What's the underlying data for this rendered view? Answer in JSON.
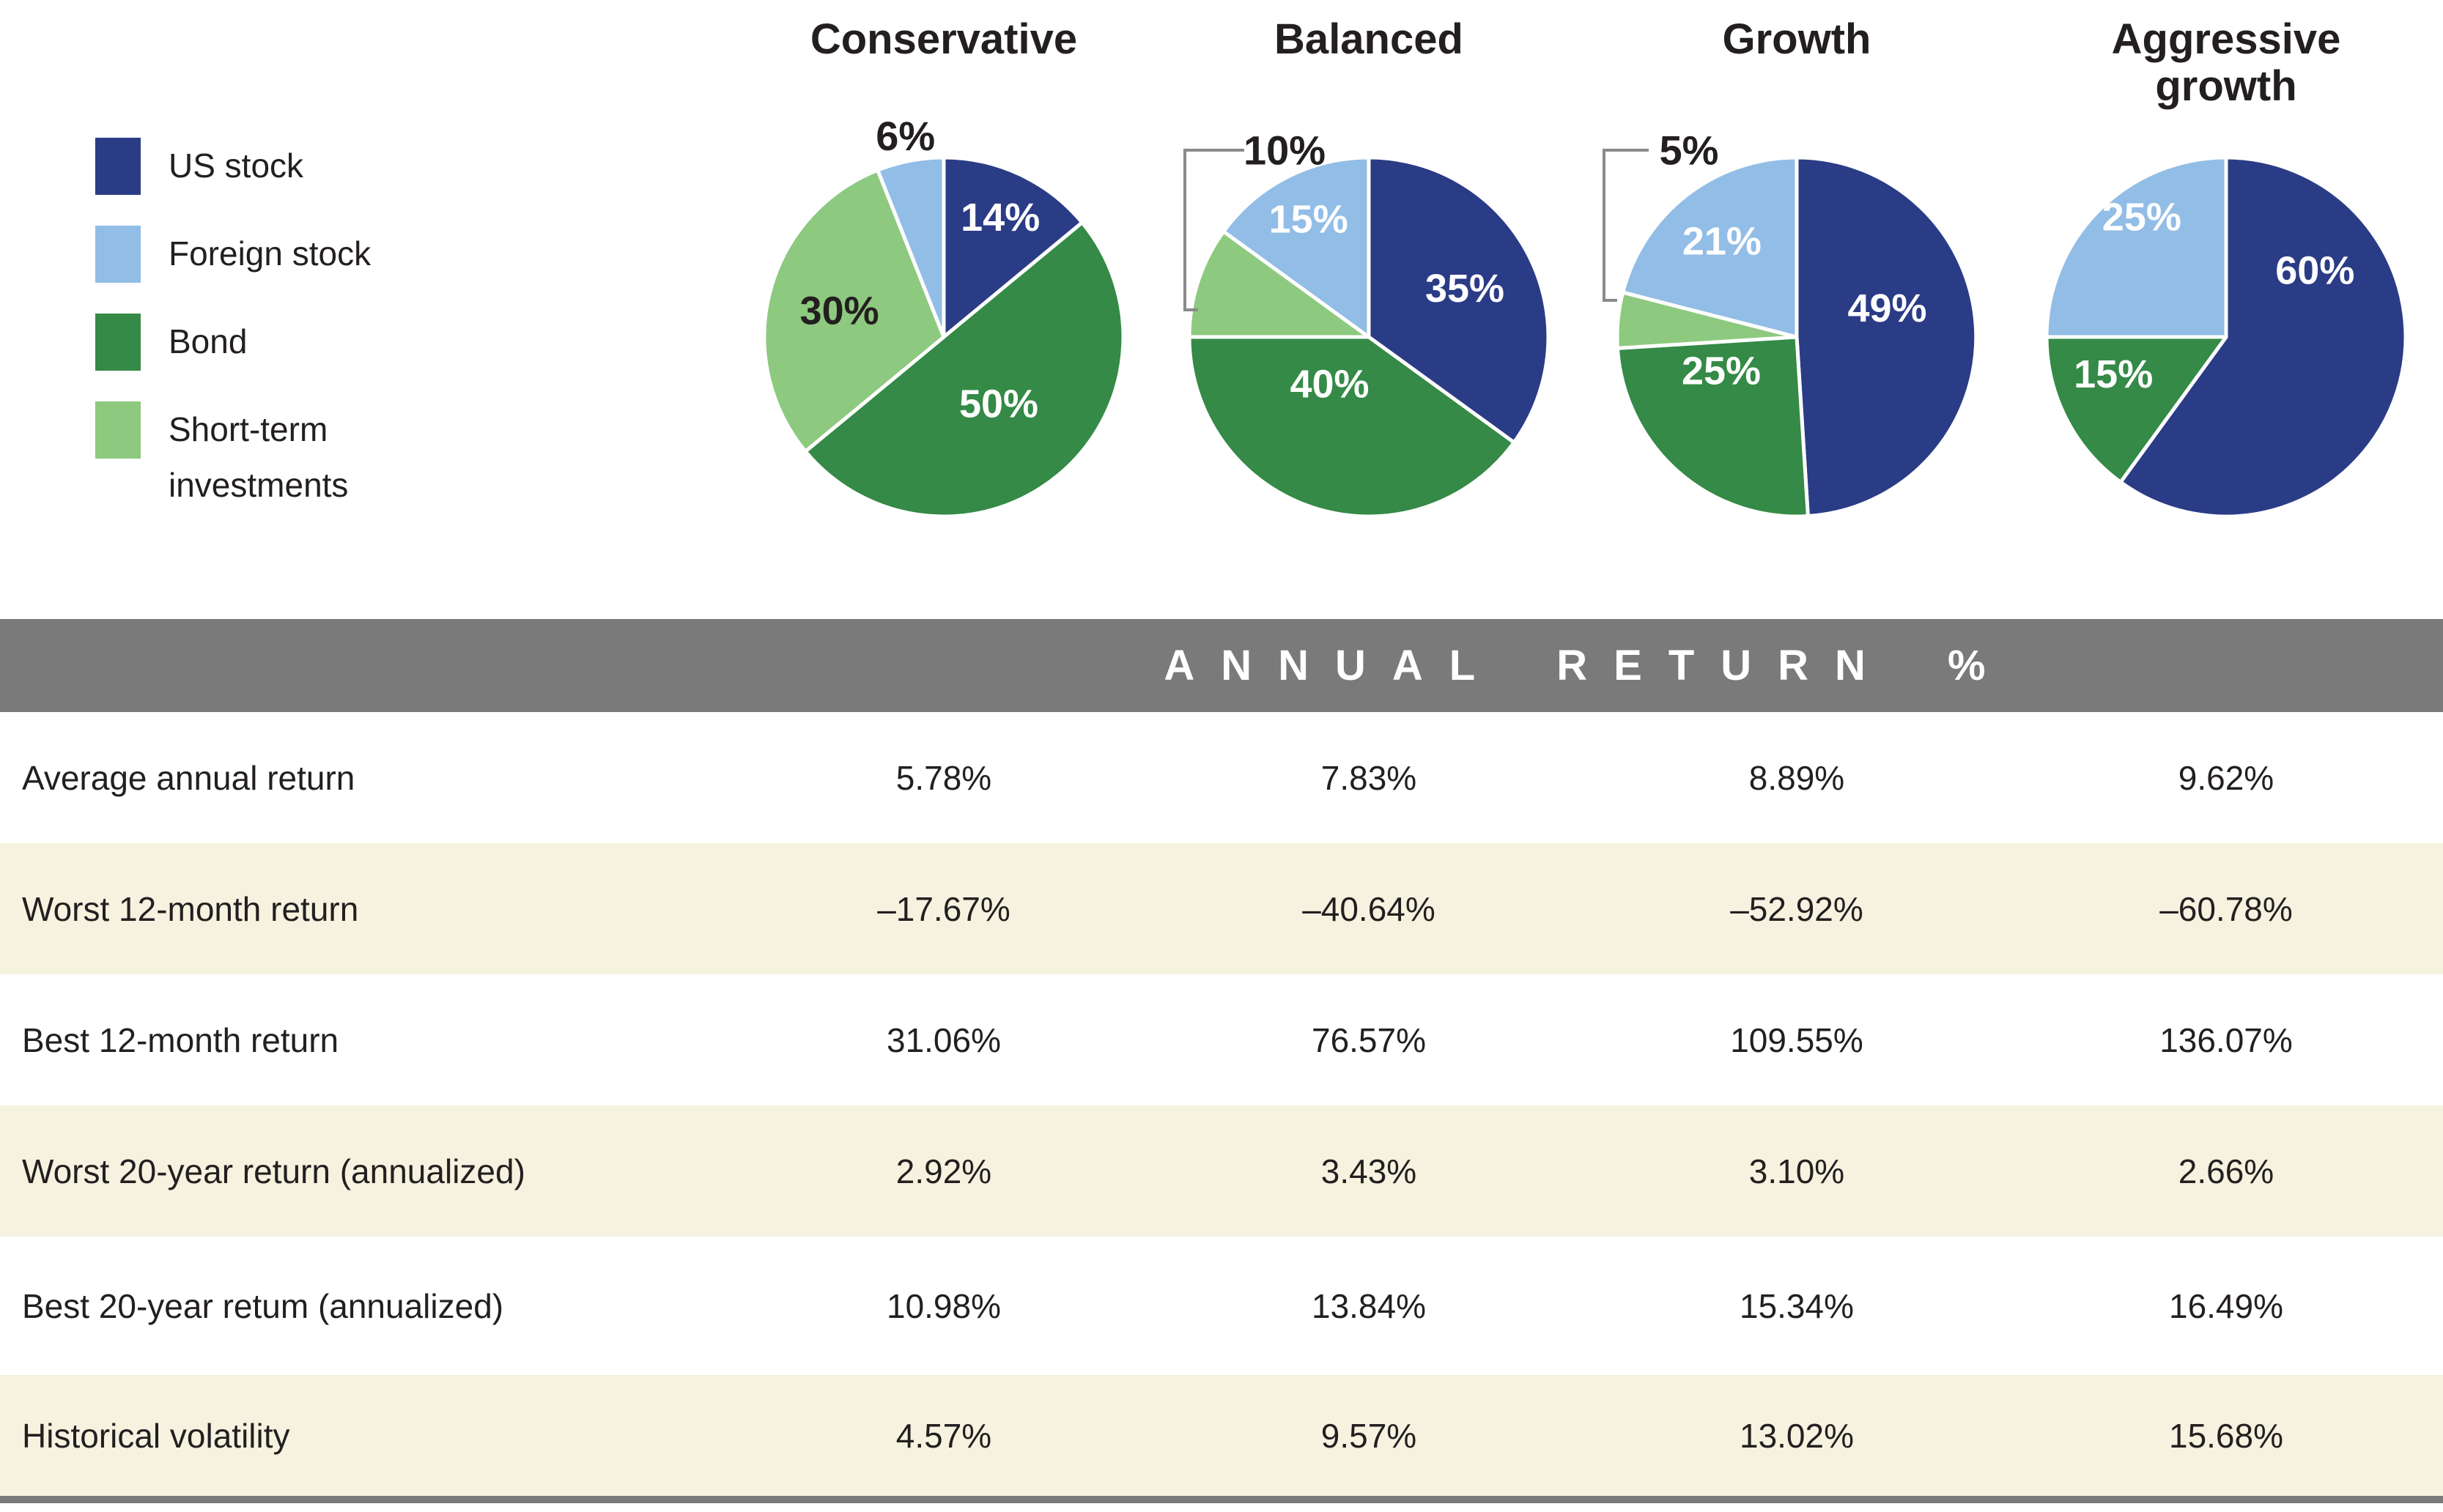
{
  "colors": {
    "band_gray": "#7A7A7A",
    "row_stripe": "#F5F2DF",
    "text_dark": "#231F20",
    "pie_label_light": "#FFFFFF",
    "callout_line": "#8A8A8A"
  },
  "chart_data": {
    "type": "pie",
    "legend_position": "left",
    "legend": [
      {
        "key": "us_stock",
        "label": "US stock",
        "color": "#2B3C86"
      },
      {
        "key": "foreign_stock",
        "label": "Foreign stock",
        "color": "#92BDE6"
      },
      {
        "key": "bond",
        "label": "Bond",
        "color": "#348A46"
      },
      {
        "key": "short_term",
        "label": "Short-term investments",
        "color": "#8DC97F"
      }
    ],
    "pies": [
      {
        "title": "Conservative",
        "segments": [
          {
            "key": "us_stock",
            "pct": 14
          },
          {
            "key": "bond",
            "pct": 50
          },
          {
            "key": "short_term",
            "pct": 30
          },
          {
            "key": "foreign_stock",
            "pct": 6,
            "label_pos": "outside"
          }
        ]
      },
      {
        "title": "Balanced",
        "segments": [
          {
            "key": "us_stock",
            "pct": 35
          },
          {
            "key": "bond",
            "pct": 40
          },
          {
            "key": "short_term",
            "pct": 10,
            "label_pos": "outside",
            "callout": true
          },
          {
            "key": "foreign_stock",
            "pct": 15
          }
        ]
      },
      {
        "title": "Growth",
        "segments": [
          {
            "key": "us_stock",
            "pct": 49
          },
          {
            "key": "bond",
            "pct": 25
          },
          {
            "key": "short_term",
            "pct": 5,
            "label_pos": "outside",
            "callout": true
          },
          {
            "key": "foreign_stock",
            "pct": 21
          }
        ]
      },
      {
        "title": "Aggressive growth",
        "segments": [
          {
            "key": "us_stock",
            "pct": 60
          },
          {
            "key": "bond",
            "pct": 15
          },
          {
            "key": "foreign_stock",
            "pct": 25
          }
        ]
      }
    ],
    "table": {
      "header": "ANNUAL RETURN %",
      "rows": [
        {
          "label": "Average annual return",
          "values": [
            "5.78%",
            "7.83%",
            "8.89%",
            "9.62%"
          ]
        },
        {
          "label": "Worst 12-month return",
          "values": [
            "–17.67%",
            "–40.64%",
            "–52.92%",
            "–60.78%"
          ]
        },
        {
          "label": "Best 12-month return",
          "values": [
            "31.06%",
            "76.57%",
            "109.55%",
            "136.07%"
          ]
        },
        {
          "label": "Worst 20-year return (annualized)",
          "values": [
            "2.92%",
            "3.43%",
            "3.10%",
            "2.66%"
          ]
        },
        {
          "label": "Best 20-year retum (annualized)",
          "values": [
            "10.98%",
            "13.84%",
            "15.34%",
            "16.49%"
          ]
        },
        {
          "label": "Historical volatility",
          "values": [
            "4.57%",
            "9.57%",
            "13.02%",
            "15.68%"
          ]
        }
      ]
    }
  }
}
